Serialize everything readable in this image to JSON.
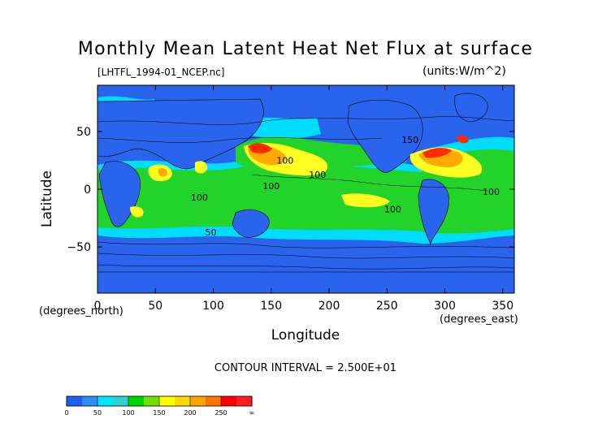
{
  "chart_data": {
    "type": "heatmap",
    "title": "Monthly Mean Latent Heat Net Flux at surface",
    "source_label": "[LHTFL_1994-01_NCEP.nc]",
    "units_label": "(units:W/m^2)",
    "xlabel": "Longitude",
    "ylabel": "Latitude",
    "x_unit_label": "(degrees_east)",
    "y_unit_label": "(degrees_north)",
    "xlim": [
      0,
      360
    ],
    "ylim": [
      -90,
      90
    ],
    "x_ticks": [
      0,
      50,
      100,
      150,
      200,
      250,
      300,
      350
    ],
    "y_ticks": [
      -50,
      0,
      50
    ],
    "contour_interval_label": "CONTOUR INTERVAL = 2.500E+01",
    "contour_labels": [
      {
        "lon": 162,
        "lat": 22,
        "text": "100"
      },
      {
        "lon": 190,
        "lat": 10,
        "text": "100"
      },
      {
        "lon": 270,
        "lat": 40,
        "text": "150"
      },
      {
        "lon": 88,
        "lat": -10,
        "text": "100"
      },
      {
        "lon": 255,
        "lat": -20,
        "text": "100"
      },
      {
        "lon": 340,
        "lat": -5,
        "text": "100"
      },
      {
        "lon": 150,
        "lat": 0,
        "text": "100"
      },
      {
        "lon": 98,
        "lat": -40,
        "text": "50"
      }
    ],
    "colorbar": {
      "labels": [
        "0",
        "50",
        "100",
        "150",
        "200",
        "250",
        "∞"
      ],
      "colors": [
        "#1e5ff0",
        "#2b8cf3",
        "#00e5ff",
        "#31d0d0",
        "#00d400",
        "#6fe000",
        "#ffff00",
        "#ffd700",
        "#ffa500",
        "#ff7400",
        "#ff0000",
        "#ff1e1e"
      ]
    },
    "palette": {
      "land": "#2a63ec",
      "low_0_50": "#2a63ec",
      "cyan_50_100": "#00dcff",
      "green_100_150": "#22d32a",
      "yellow_150_200": "#ffff22",
      "orange_200_250": "#ffaa00",
      "red_250_up": "#ff2a00"
    }
  }
}
